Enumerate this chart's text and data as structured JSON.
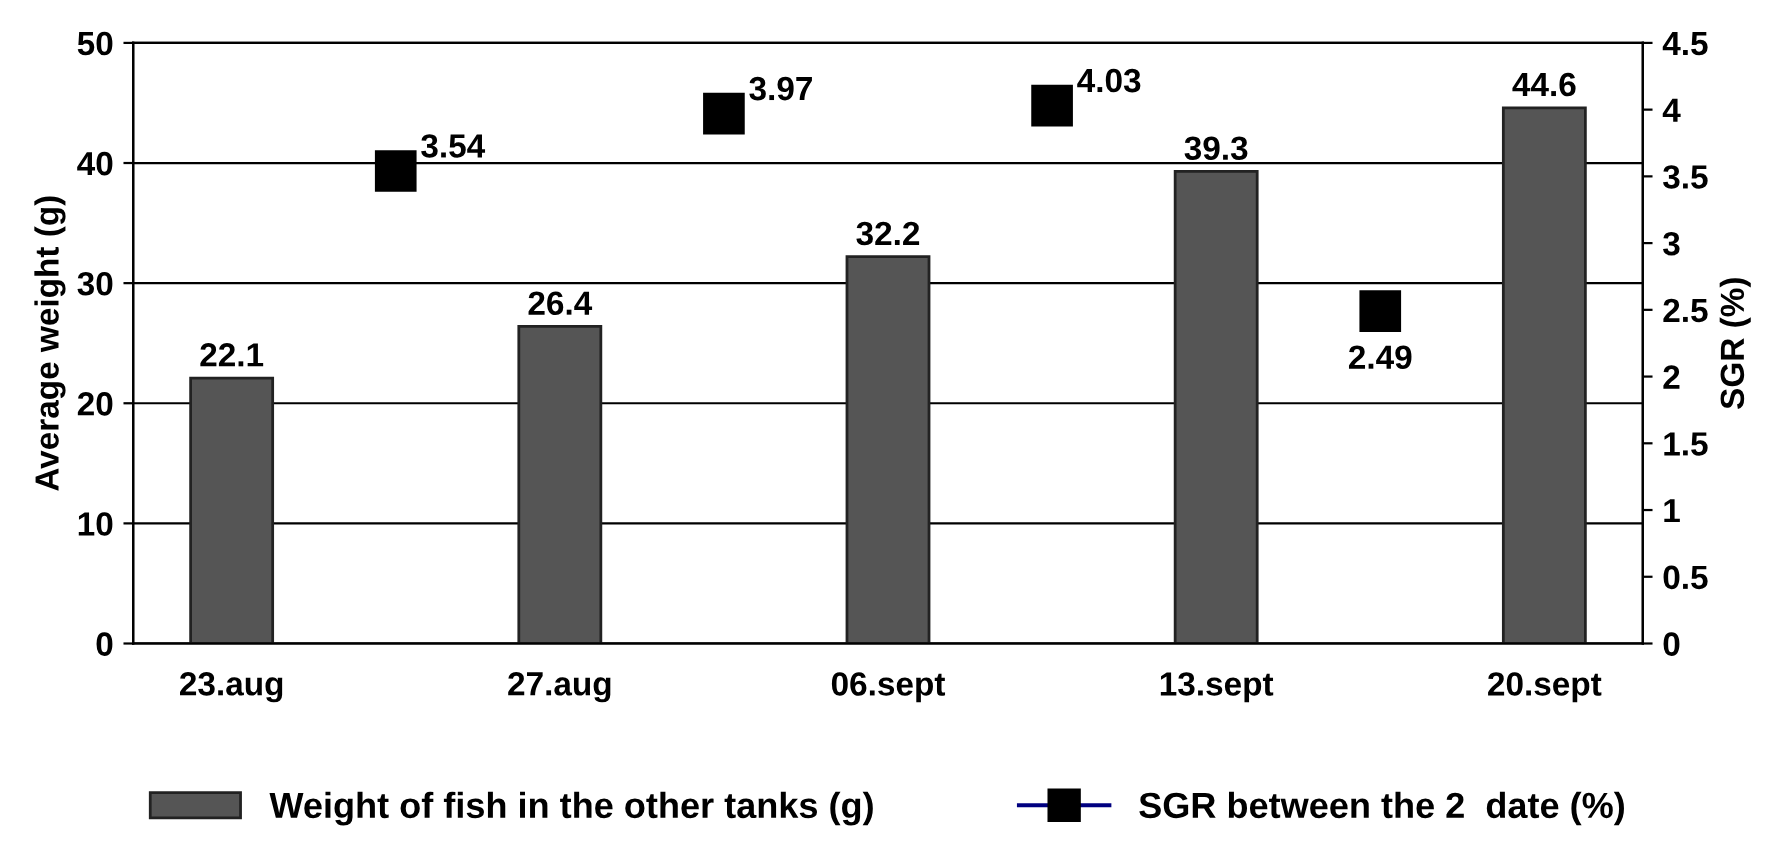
{
  "chart_data": {
    "type": "bar",
    "categories": [
      "23.aug",
      null,
      "27.aug",
      null,
      "06.sept",
      null,
      "13.sept",
      null,
      "20.sept"
    ],
    "ylabel": "Average weight (g)",
    "y2label": "SGR (%)",
    "ylim": [
      0,
      50
    ],
    "yticks": [
      0,
      10,
      20,
      30,
      40,
      50
    ],
    "y2lim": [
      0,
      4.5
    ],
    "y2ticks": [
      0,
      0.5,
      1,
      1.5,
      2,
      2.5,
      3,
      3.5,
      4,
      4.5
    ],
    "grid": "y",
    "legend": "bottom",
    "data_labels": true,
    "series": [
      {
        "name": "Weight of fish in the other tanks (g)",
        "color": "#555555",
        "values": [
          22.1,
          null,
          26.4,
          null,
          32.2,
          null,
          39.3,
          null,
          44.6
        ]
      },
      {
        "name": "SGR between the 2  date (%)",
        "type": "scatter",
        "axis": "y2",
        "marker": "square",
        "color": "#000000",
        "values": [
          null,
          3.54,
          null,
          3.97,
          null,
          4.03,
          null,
          2.49,
          null
        ]
      }
    ]
  }
}
